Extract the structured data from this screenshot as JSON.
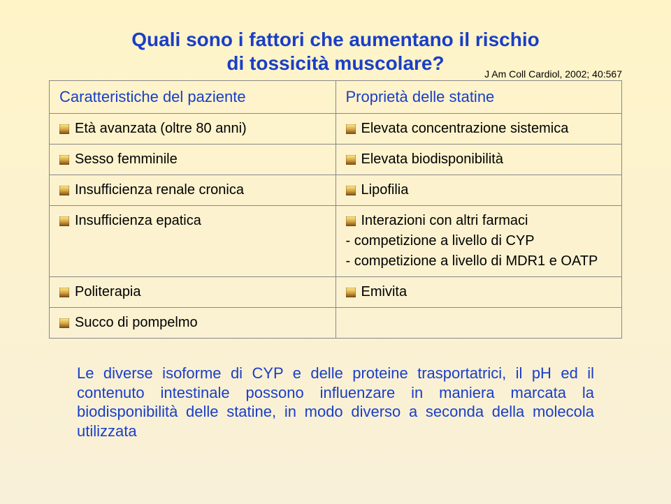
{
  "colors": {
    "bg_top": "#fff4c8",
    "bg_bottom": "#f8f0d8",
    "title": "#1a3ec7",
    "citation": "#000000",
    "header_text": "#1a3ec7",
    "cell_text": "#000000",
    "border": "#888888",
    "bullet_top": "#ffee88",
    "bullet_mid": "#d9a84a",
    "bullet_bot": "#7a4a10",
    "summary_text": "#1a3ec7"
  },
  "title": {
    "line1": "Quali sono i fattori che aumentano il rischio",
    "line2": "di tossicità muscolare?"
  },
  "citation": "J Am Coll Cardiol, 2002; 40:567",
  "table": {
    "header_left": "Caratteristiche del paziente",
    "header_right": "Proprietà delle statine",
    "rows": [
      {
        "left": "Età avanzata (oltre 80 anni)",
        "right": "Elevata concentrazione sistemica"
      },
      {
        "left": "Sesso femminile",
        "right": "Elevata biodisponibilità"
      },
      {
        "left": "Insufficienza renale cronica",
        "right": "Lipofilia"
      },
      {
        "left": "Insufficienza epatica",
        "right": "Interazioni con altri farmaci",
        "right_sub": [
          "- competizione a livello di CYP",
          "- competizione a livello di MDR1 e OATP"
        ]
      },
      {
        "left": "Politerapia",
        "right": "Emivita"
      },
      {
        "left": "Succo di pompelmo",
        "right": ""
      }
    ]
  },
  "summary": "Le diverse isoforme di CYP e delle proteine trasportatrici, il pH ed il contenuto intestinale possono influenzare in maniera marcata la biodisponibilità delle statine, in modo diverso a seconda della molecola utilizzata"
}
